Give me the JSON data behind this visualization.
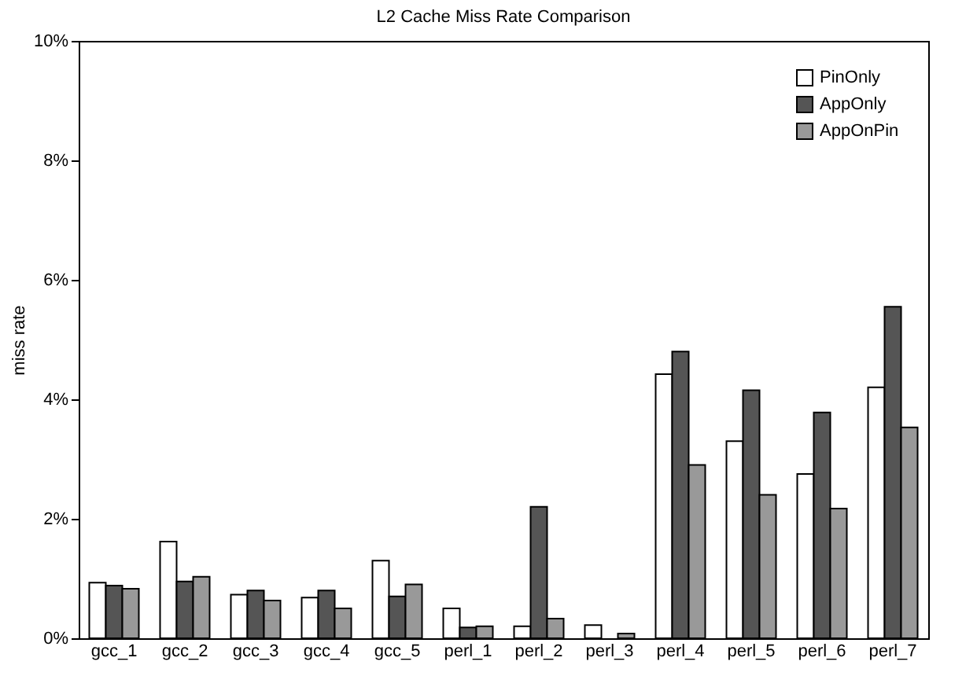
{
  "chart_data": {
    "type": "bar",
    "title": "L2 Cache Miss Rate Comparison",
    "ylabel": "miss rate",
    "categories": [
      "gcc_1",
      "gcc_2",
      "gcc_3",
      "gcc_4",
      "gcc_5",
      "perl_1",
      "perl_2",
      "perl_3",
      "perl_4",
      "perl_5",
      "perl_6",
      "perl_7"
    ],
    "series": [
      {
        "name": "PinOnly",
        "color": "#ffffff",
        "values": [
          0.93,
          1.62,
          0.73,
          0.68,
          1.3,
          0.5,
          0.2,
          0.22,
          4.42,
          3.3,
          2.75,
          4.2
        ]
      },
      {
        "name": "AppOnly",
        "color": "#555555",
        "values": [
          0.88,
          0.95,
          0.8,
          0.8,
          0.7,
          0.18,
          2.2,
          null,
          4.8,
          4.15,
          3.78,
          5.55
        ]
      },
      {
        "name": "AppOnPin",
        "color": "#999999",
        "values": [
          0.83,
          1.03,
          0.63,
          0.5,
          0.9,
          0.2,
          0.33,
          0.08,
          2.9,
          2.4,
          2.17,
          3.53
        ]
      }
    ],
    "ylim": [
      0,
      10
    ],
    "yticks": [
      {
        "value": 0,
        "label": "0%"
      },
      {
        "value": 2,
        "label": "2%"
      },
      {
        "value": 4,
        "label": "4%"
      },
      {
        "value": 6,
        "label": "6%"
      },
      {
        "value": 8,
        "label": "8%"
      },
      {
        "value": 10,
        "label": "10%"
      }
    ],
    "grid": false,
    "legend": "top right"
  }
}
